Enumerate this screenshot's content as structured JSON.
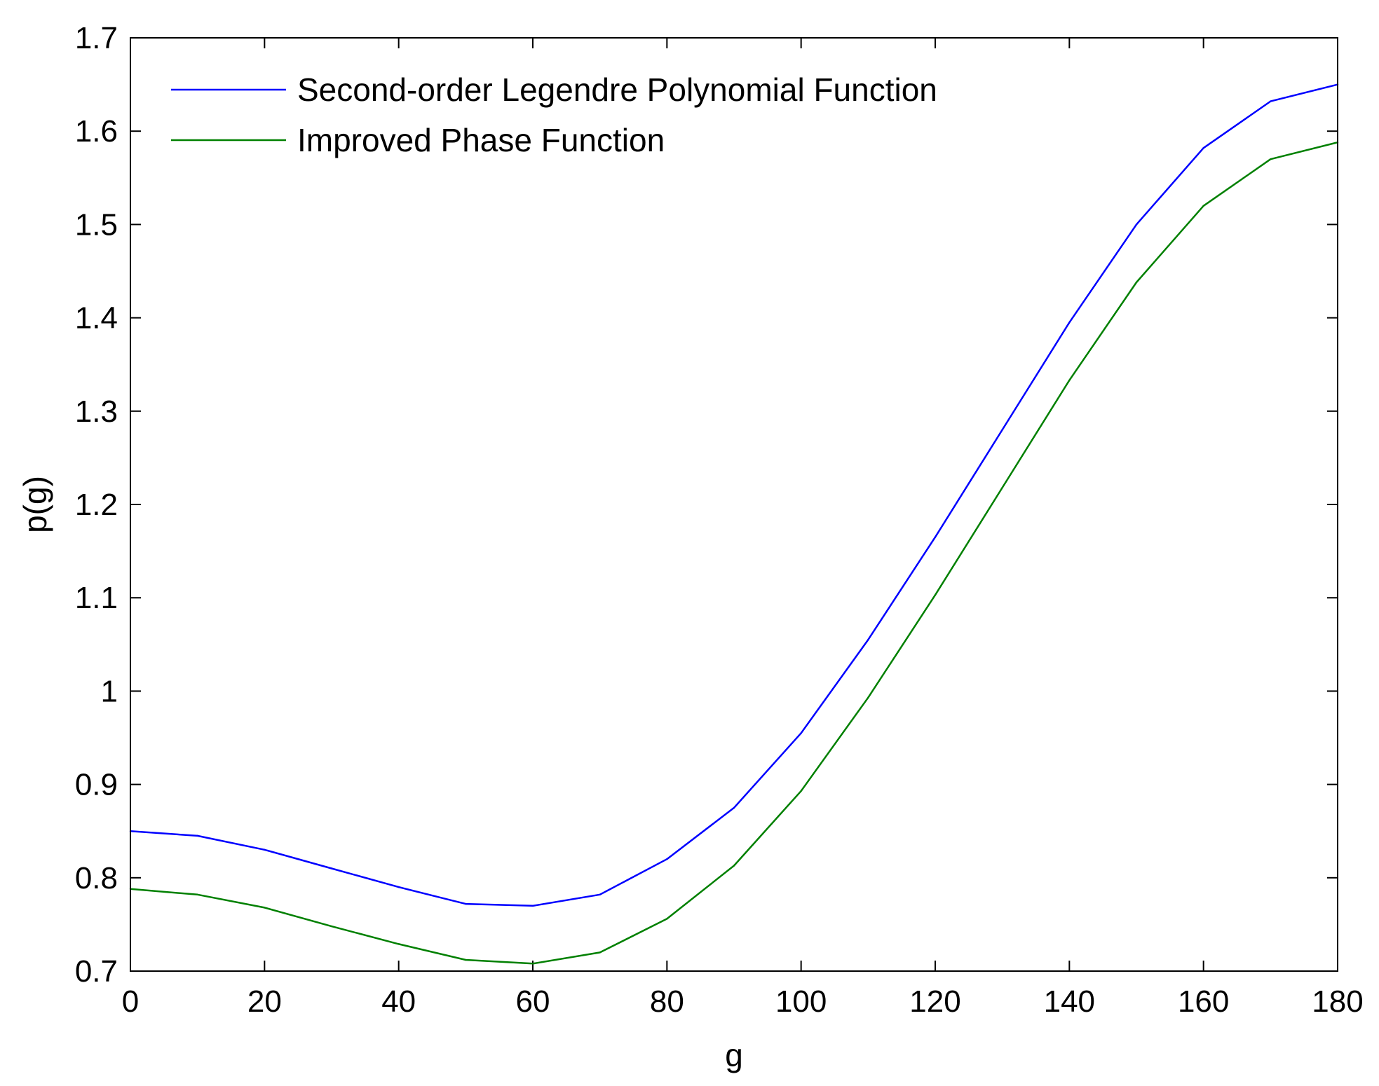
{
  "chart_data": {
    "type": "line",
    "title": "",
    "xlabel": "g",
    "ylabel": "p(g)",
    "xlim": [
      0,
      180
    ],
    "ylim": [
      0.7,
      1.7
    ],
    "xticks": [
      0,
      20,
      40,
      60,
      80,
      100,
      120,
      140,
      160,
      180
    ],
    "yticks": [
      0.7,
      0.8,
      0.9,
      1,
      1.1,
      1.2,
      1.3,
      1.4,
      1.5,
      1.6,
      1.7
    ],
    "xtick_labels": [
      "0",
      "20",
      "40",
      "60",
      "80",
      "100",
      "120",
      "140",
      "160",
      "180"
    ],
    "ytick_labels": [
      "0.7",
      "0.8",
      "0.9",
      "1",
      "1.1",
      "1.2",
      "1.3",
      "1.4",
      "1.5",
      "1.6",
      "1.7"
    ],
    "grid": false,
    "legend_position": "top-left",
    "x": [
      0,
      10,
      20,
      30,
      40,
      50,
      60,
      70,
      80,
      90,
      100,
      110,
      120,
      130,
      140,
      150,
      160,
      170,
      180
    ],
    "series": [
      {
        "name": "Second-order Legendre Polynomial Function",
        "color": "#0000ff",
        "values": [
          0.85,
          0.845,
          0.83,
          0.81,
          0.79,
          0.772,
          0.77,
          0.782,
          0.82,
          0.875,
          0.955,
          1.055,
          1.165,
          1.28,
          1.395,
          1.5,
          1.582,
          1.632,
          1.65
        ]
      },
      {
        "name": "Improved Phase Function",
        "color": "#008000",
        "values": [
          0.788,
          0.782,
          0.768,
          0.748,
          0.729,
          0.712,
          0.708,
          0.72,
          0.756,
          0.813,
          0.893,
          0.993,
          1.103,
          1.218,
          1.333,
          1.438,
          1.52,
          1.57,
          1.588
        ]
      }
    ]
  }
}
